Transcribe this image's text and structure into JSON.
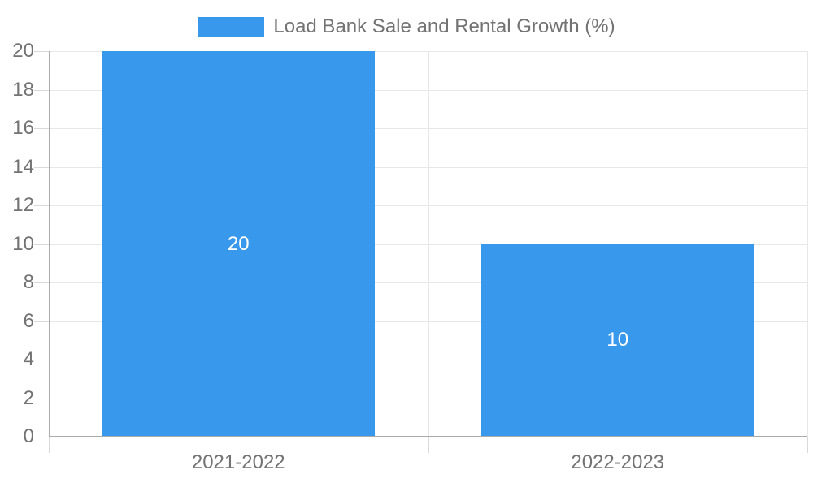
{
  "chart_data": {
    "type": "bar",
    "title": "Load Bank Sale and Rental Growth (%)",
    "categories": [
      "2021-2022",
      "2022-2023"
    ],
    "series": [
      {
        "name": "Load Bank Sale and Rental Growth (%)",
        "values": [
          20,
          10
        ]
      }
    ],
    "data_labels": [
      "20",
      "10"
    ],
    "xlabel": "",
    "ylabel": "",
    "ylim": [
      0,
      20
    ],
    "yticks": [
      0,
      2,
      4,
      6,
      8,
      10,
      12,
      14,
      16,
      18,
      20
    ],
    "grid": true,
    "legend_position": "top-center",
    "bar_width_fraction": 0.72
  },
  "legend": {
    "label": "Load Bank Sale and Rental Growth (%)"
  },
  "colors": {
    "bar": "#3898EC",
    "axis_text": "#737373",
    "data_label_text": "#FFFFFF",
    "grid_line": "#E8E8E8",
    "tick_line": "#D9D9D9",
    "axis_line": "#ABABAB",
    "background": "#FFFFFF"
  }
}
